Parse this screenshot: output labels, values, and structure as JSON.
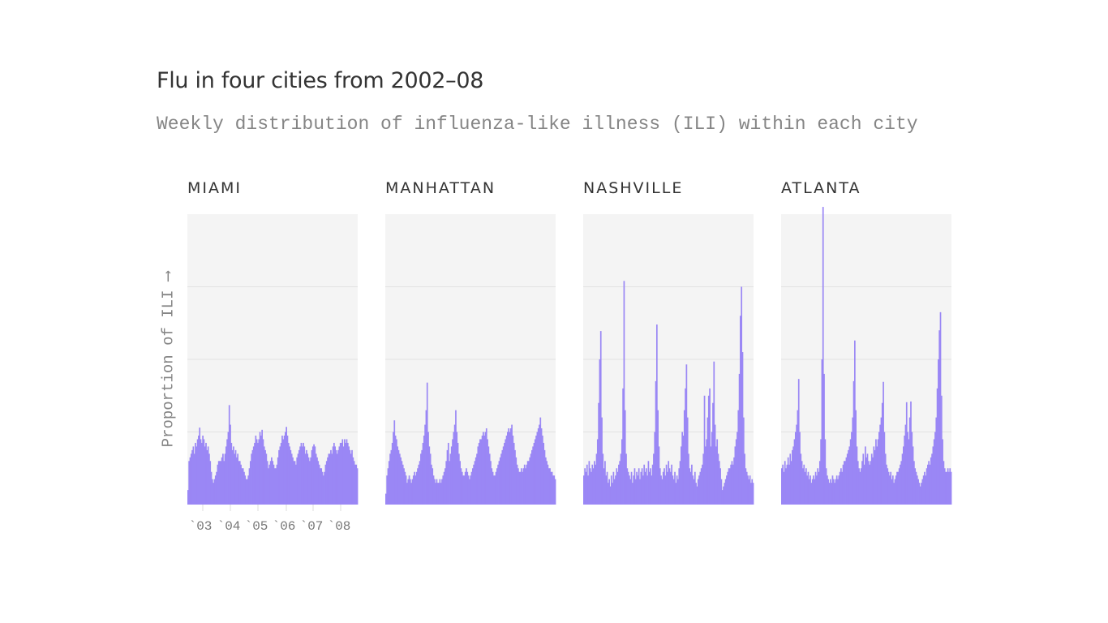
{
  "title": "Flu in four cities from 2002–08",
  "subtitle": "Weekly distribution of influenza-like illness (ILI) within each city",
  "colors": {
    "bar": "#9a87f5",
    "panel_bg": "#f4f4f4",
    "grid": "#e2e2e2"
  },
  "chart_data": {
    "type": "bar",
    "title": "Flu in four cities from 2002–08",
    "subtitle": "Weekly distribution of influenza-like illness (ILI) within each city",
    "ylabel": "Proportion of ILI ⟶",
    "y_units": "relative (gridline spacing = 1), no numeric ticks shown",
    "ylim": [
      0,
      4
    ],
    "grid": true,
    "x_tick_labels": [
      "`03",
      "`04",
      "`05",
      "`06",
      "`07",
      "`08"
    ],
    "series": [
      {
        "name": "MIAMI",
        "values": [
          0.2,
          0.6,
          0.65,
          0.7,
          0.75,
          0.8,
          0.7,
          0.85,
          0.8,
          0.9,
          0.95,
          1.06,
          0.9,
          0.85,
          0.95,
          0.9,
          0.8,
          0.85,
          0.75,
          0.8,
          0.7,
          0.6,
          0.45,
          0.35,
          0.3,
          0.35,
          0.4,
          0.45,
          0.55,
          0.6,
          0.6,
          0.6,
          0.65,
          0.7,
          0.6,
          0.7,
          0.8,
          0.9,
          1.0,
          1.37,
          1.1,
          0.85,
          0.75,
          0.8,
          0.7,
          0.75,
          0.65,
          0.7,
          0.6,
          0.6,
          0.55,
          0.5,
          0.5,
          0.45,
          0.4,
          0.35,
          0.35,
          0.4,
          0.5,
          0.6,
          0.7,
          0.75,
          0.8,
          0.85,
          0.95,
          0.9,
          0.85,
          0.9,
          1.0,
          0.95,
          1.03,
          0.9,
          0.8,
          0.75,
          0.7,
          0.6,
          0.5,
          0.55,
          0.6,
          0.65,
          0.6,
          0.55,
          0.5,
          0.5,
          0.55,
          0.65,
          0.75,
          0.8,
          0.85,
          0.95,
          0.9,
          0.95,
          1.0,
          1.07,
          0.95,
          0.85,
          0.8,
          0.75,
          0.7,
          0.65,
          0.6,
          0.6,
          0.55,
          0.65,
          0.7,
          0.75,
          0.8,
          0.85,
          0.8,
          0.85,
          0.8,
          0.7,
          0.75,
          0.7,
          0.65,
          0.6,
          0.65,
          0.75,
          0.8,
          0.83,
          0.8,
          0.7,
          0.65,
          0.6,
          0.55,
          0.5,
          0.5,
          0.45,
          0.4,
          0.45,
          0.55,
          0.6,
          0.65,
          0.7,
          0.7,
          0.75,
          0.7,
          0.8,
          0.85,
          0.8,
          0.75,
          0.7,
          0.75,
          0.8,
          0.85,
          0.85,
          0.9,
          0.8,
          0.9,
          0.85,
          0.9,
          0.85,
          0.8,
          0.75,
          0.7,
          0.75,
          0.65,
          0.6,
          0.55,
          0.55,
          0.5
        ]
      },
      {
        "name": "MANHATTAN",
        "values": [
          0.15,
          0.4,
          0.5,
          0.6,
          0.7,
          0.75,
          0.85,
          1.0,
          1.16,
          0.95,
          0.9,
          0.8,
          0.75,
          0.7,
          0.65,
          0.6,
          0.55,
          0.5,
          0.45,
          0.4,
          0.3,
          0.35,
          0.4,
          0.35,
          0.3,
          0.35,
          0.4,
          0.45,
          0.4,
          0.45,
          0.5,
          0.55,
          0.6,
          0.7,
          0.75,
          0.85,
          0.95,
          1.1,
          1.3,
          1.68,
          1.0,
          0.8,
          0.7,
          0.55,
          0.5,
          0.4,
          0.35,
          0.3,
          0.35,
          0.3,
          0.3,
          0.35,
          0.3,
          0.35,
          0.4,
          0.45,
          0.5,
          0.6,
          0.75,
          0.85,
          0.6,
          0.7,
          0.8,
          0.9,
          1.0,
          1.1,
          1.3,
          1.0,
          0.85,
          0.7,
          0.6,
          0.5,
          0.45,
          0.4,
          0.4,
          0.45,
          0.5,
          0.45,
          0.4,
          0.35,
          0.4,
          0.45,
          0.5,
          0.55,
          0.6,
          0.65,
          0.7,
          0.8,
          0.85,
          0.9,
          0.9,
          0.95,
          1.0,
          0.95,
          1.0,
          1.05,
          0.9,
          0.8,
          0.7,
          0.6,
          0.5,
          0.45,
          0.4,
          0.4,
          0.45,
          0.5,
          0.55,
          0.6,
          0.65,
          0.7,
          0.75,
          0.8,
          0.85,
          0.9,
          0.95,
          1.0,
          1.05,
          1.0,
          1.05,
          1.1,
          0.95,
          0.85,
          0.75,
          0.65,
          0.55,
          0.5,
          0.45,
          0.45,
          0.5,
          0.45,
          0.5,
          0.55,
          0.5,
          0.55,
          0.6,
          0.6,
          0.65,
          0.7,
          0.75,
          0.8,
          0.85,
          0.9,
          0.95,
          1.0,
          1.05,
          1.1,
          1.2,
          1.05,
          0.95,
          0.85,
          0.75,
          0.65,
          0.6,
          0.55,
          0.5,
          0.5,
          0.45,
          0.45,
          0.4,
          0.4,
          0.35
        ]
      },
      {
        "name": "NASHVILLE",
        "values": [
          0.4,
          0.5,
          0.45,
          0.55,
          0.4,
          0.6,
          0.5,
          0.45,
          0.55,
          0.5,
          0.6,
          0.55,
          0.7,
          0.9,
          1.4,
          2.0,
          2.39,
          1.2,
          0.7,
          0.5,
          0.6,
          0.4,
          0.45,
          0.3,
          0.35,
          0.25,
          0.4,
          0.3,
          0.45,
          0.35,
          0.4,
          0.5,
          0.45,
          0.55,
          0.6,
          0.7,
          0.9,
          1.6,
          3.08,
          1.3,
          0.7,
          0.5,
          0.45,
          0.4,
          0.35,
          0.45,
          0.3,
          0.4,
          0.5,
          0.35,
          0.45,
          0.4,
          0.5,
          0.35,
          0.45,
          0.5,
          0.4,
          0.55,
          0.45,
          0.5,
          0.4,
          0.6,
          0.45,
          0.5,
          0.4,
          0.55,
          0.7,
          1.0,
          1.7,
          2.48,
          1.3,
          0.8,
          0.5,
          0.4,
          0.35,
          0.45,
          0.5,
          0.4,
          0.55,
          0.45,
          0.6,
          0.5,
          0.45,
          0.55,
          0.4,
          0.35,
          0.45,
          0.3,
          0.4,
          0.35,
          0.5,
          0.6,
          0.8,
          1.0,
          0.95,
          1.3,
          1.6,
          1.93,
          1.2,
          0.7,
          0.5,
          0.45,
          0.55,
          0.4,
          0.35,
          0.45,
          0.3,
          0.25,
          0.35,
          0.4,
          0.45,
          0.5,
          0.55,
          0.7,
          1.5,
          0.8,
          0.9,
          1.2,
          1.5,
          1.6,
          0.8,
          1.0,
          1.4,
          1.97,
          1.1,
          0.8,
          0.9,
          0.7,
          0.6,
          0.5,
          0.35,
          0.2,
          0.25,
          0.3,
          0.35,
          0.4,
          0.45,
          0.5,
          0.5,
          0.55,
          0.6,
          0.55,
          0.65,
          0.8,
          0.9,
          1.0,
          1.3,
          1.8,
          2.6,
          3.0,
          2.1,
          1.2,
          0.7,
          0.5,
          0.45,
          0.4,
          0.35,
          0.4,
          0.3,
          0.35,
          0.3
        ]
      },
      {
        "name": "ATLANTA",
        "values": [
          0.5,
          0.55,
          0.45,
          0.6,
          0.5,
          0.55,
          0.65,
          0.55,
          0.7,
          0.6,
          0.75,
          0.8,
          0.9,
          1.0,
          1.1,
          1.3,
          1.73,
          1.0,
          0.7,
          0.6,
          0.5,
          0.55,
          0.45,
          0.5,
          0.4,
          0.45,
          0.35,
          0.4,
          0.3,
          0.35,
          0.4,
          0.35,
          0.45,
          0.4,
          0.5,
          0.45,
          0.6,
          0.9,
          2.0,
          4.1,
          1.8,
          0.9,
          0.5,
          0.4,
          0.35,
          0.3,
          0.35,
          0.3,
          0.4,
          0.35,
          0.3,
          0.35,
          0.4,
          0.35,
          0.4,
          0.45,
          0.5,
          0.45,
          0.55,
          0.6,
          0.6,
          0.65,
          0.7,
          0.75,
          0.8,
          0.9,
          1.0,
          1.2,
          1.7,
          2.26,
          1.3,
          0.8,
          0.6,
          0.5,
          0.45,
          0.5,
          0.6,
          0.7,
          0.55,
          0.8,
          0.65,
          0.7,
          0.6,
          0.55,
          0.6,
          0.7,
          0.65,
          0.8,
          0.75,
          0.9,
          0.8,
          0.9,
          1.0,
          1.1,
          1.2,
          1.4,
          1.69,
          1.0,
          0.7,
          0.55,
          0.5,
          0.45,
          0.4,
          0.45,
          0.35,
          0.4,
          0.3,
          0.35,
          0.4,
          0.45,
          0.45,
          0.5,
          0.55,
          0.6,
          0.7,
          0.8,
          0.95,
          1.1,
          1.41,
          1.0,
          0.9,
          1.2,
          1.42,
          1.0,
          0.8,
          0.6,
          0.5,
          0.45,
          0.4,
          0.35,
          0.3,
          0.25,
          0.3,
          0.35,
          0.4,
          0.45,
          0.4,
          0.5,
          0.55,
          0.6,
          0.55,
          0.65,
          0.7,
          0.8,
          0.9,
          1.0,
          1.2,
          1.6,
          2.0,
          2.4,
          2.65,
          1.5,
          0.9,
          0.6,
          0.5,
          0.45,
          0.45,
          0.5,
          0.45,
          0.5,
          0.45
        ]
      }
    ]
  }
}
